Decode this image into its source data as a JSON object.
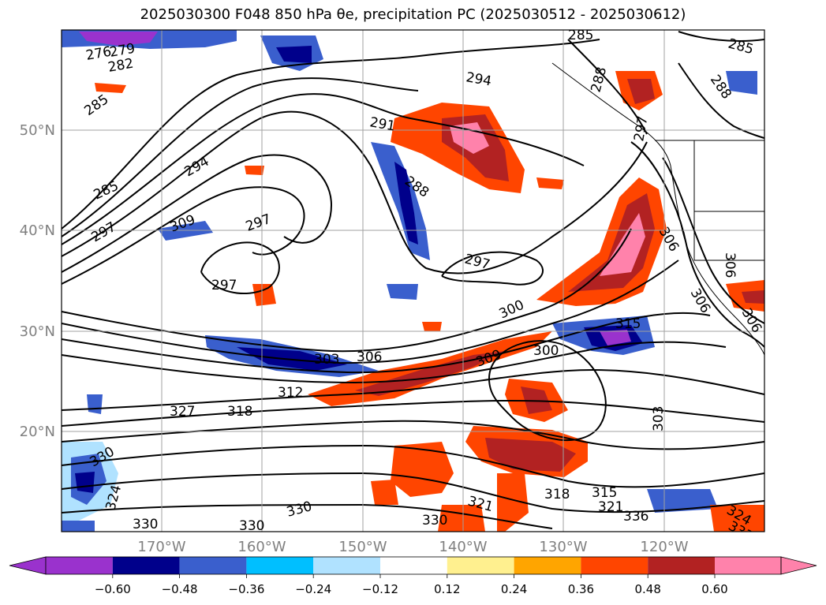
{
  "title": "2025030300 F048 850 hPa θe, precipitation PC (2025030512 - 2025030612)",
  "lat_labels": [
    "50°N",
    "40°N",
    "30°N",
    "20°N"
  ],
  "lon_labels": [
    "170°W",
    "160°W",
    "150°W",
    "140°W",
    "130°W",
    "120°W"
  ],
  "colorbar": {
    "ticks": [
      "−0.60",
      "−0.48",
      "−0.36",
      "−0.24",
      "−0.12",
      "0.12",
      "0.24",
      "0.36",
      "0.48",
      "0.60"
    ],
    "colors": [
      "#9a32cd",
      "#00008b",
      "#3a5fcd",
      "#00bfff",
      "#b0e2ff",
      "#ffffff",
      "#fff08f",
      "#ffa500",
      "#ff4500",
      "#b22222",
      "#ff82ab"
    ]
  },
  "contour_labels": [
    "276",
    "279",
    "282",
    "285",
    "294",
    "291",
    "288",
    "285",
    "294",
    "297",
    "309",
    "297",
    "297",
    "297",
    "300",
    "300",
    "303",
    "306",
    "309",
    "312",
    "315",
    "318",
    "321",
    "318",
    "315",
    "321",
    "324",
    "327",
    "330",
    "330",
    "330",
    "330",
    "336",
    "303",
    "306",
    "306",
    "306",
    "306",
    "297",
    "288",
    "288",
    "285",
    "285",
    "324",
    "333",
    "330"
  ],
  "colors": {
    "axis_label": "#808080",
    "grid": "#a0a0a0",
    "contour": "#000000"
  }
}
